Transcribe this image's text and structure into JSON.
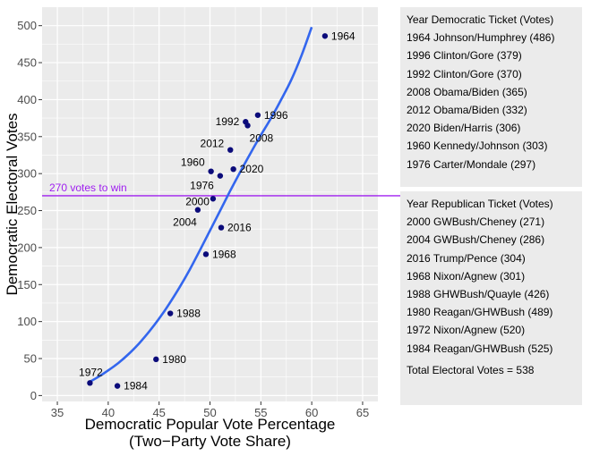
{
  "chart_data": {
    "type": "scatter",
    "xlabel": "Democratic Popular Vote Percentage",
    "xlabel_line2": "(Two−Party Vote Share)",
    "ylabel": "Democratic Electoral Votes",
    "xlim": [
      33.5,
      66.5
    ],
    "ylim": [
      -8,
      525
    ],
    "x_ticks": [
      35,
      40,
      45,
      50,
      55,
      60,
      65
    ],
    "y_ticks": [
      0,
      50,
      100,
      150,
      200,
      250,
      300,
      350,
      400,
      450,
      500
    ],
    "grid": true,
    "points": [
      {
        "label": "1964",
        "x": 61.3,
        "y": 486
      },
      {
        "label": "1996",
        "x": 54.7,
        "y": 379
      },
      {
        "label": "1992",
        "x": 53.5,
        "y": 370
      },
      {
        "label": "2008",
        "x": 53.7,
        "y": 365
      },
      {
        "label": "2012",
        "x": 52.0,
        "y": 332
      },
      {
        "label": "2020",
        "x": 52.3,
        "y": 306
      },
      {
        "label": "1960",
        "x": 50.1,
        "y": 303
      },
      {
        "label": "1976",
        "x": 51.0,
        "y": 297
      },
      {
        "label": "2000",
        "x": 50.3,
        "y": 266
      },
      {
        "label": "2004",
        "x": 48.8,
        "y": 251
      },
      {
        "label": "2016",
        "x": 51.1,
        "y": 227
      },
      {
        "label": "1968",
        "x": 49.6,
        "y": 191
      },
      {
        "label": "1988",
        "x": 46.1,
        "y": 111
      },
      {
        "label": "1980",
        "x": 44.7,
        "y": 49
      },
      {
        "label": "1984",
        "x": 40.9,
        "y": 13
      },
      {
        "label": "1972",
        "x": 38.2,
        "y": 17
      }
    ],
    "fit_curve": {
      "color": "#3366ee",
      "x": [
        38,
        39,
        40,
        41,
        42,
        43,
        44,
        45,
        46,
        47,
        48,
        49,
        50,
        51,
        52,
        53,
        54,
        55,
        56,
        57,
        58,
        59,
        60
      ],
      "y": [
        17,
        25,
        34,
        44,
        56,
        70,
        86,
        104,
        124,
        146,
        170,
        196,
        223,
        250,
        277,
        303,
        328,
        352,
        375,
        400,
        427,
        460,
        498
      ]
    },
    "reference_line": {
      "y": 270,
      "label": "270 votes to win",
      "color": "#a020f0"
    },
    "point_color": "#0b0b7a"
  },
  "legend": {
    "democratic_lines": [
      "Year  Democratic Ticket (Votes)",
      "1964 Johnson/Humphrey (486)",
      "1996 Clinton/Gore (379)",
      "1992 Clinton/Gore (370)",
      "2008 Obama/Biden (365)",
      "2012 Obama/Biden (332)",
      "2020 Biden/Harris (306)",
      "1960 Kennedy/Johnson (303)",
      "1976 Carter/Mondale (297)"
    ],
    "republican_lines": [
      "Year  Republican Ticket (Votes)",
      "2000 GWBush/Cheney (271)",
      "2004 GWBush/Cheney (286)",
      "2016 Trump/Pence (304)",
      "1968 Nixon/Agnew (301)",
      "1988 GHWBush/Quayle (426)",
      "1980 Reagan/GHWBush (489)",
      "1972 Nixon/Agnew (520)",
      "1984 Reagan/GHWBush (525)"
    ],
    "total": "Total Electoral Votes = 538"
  }
}
